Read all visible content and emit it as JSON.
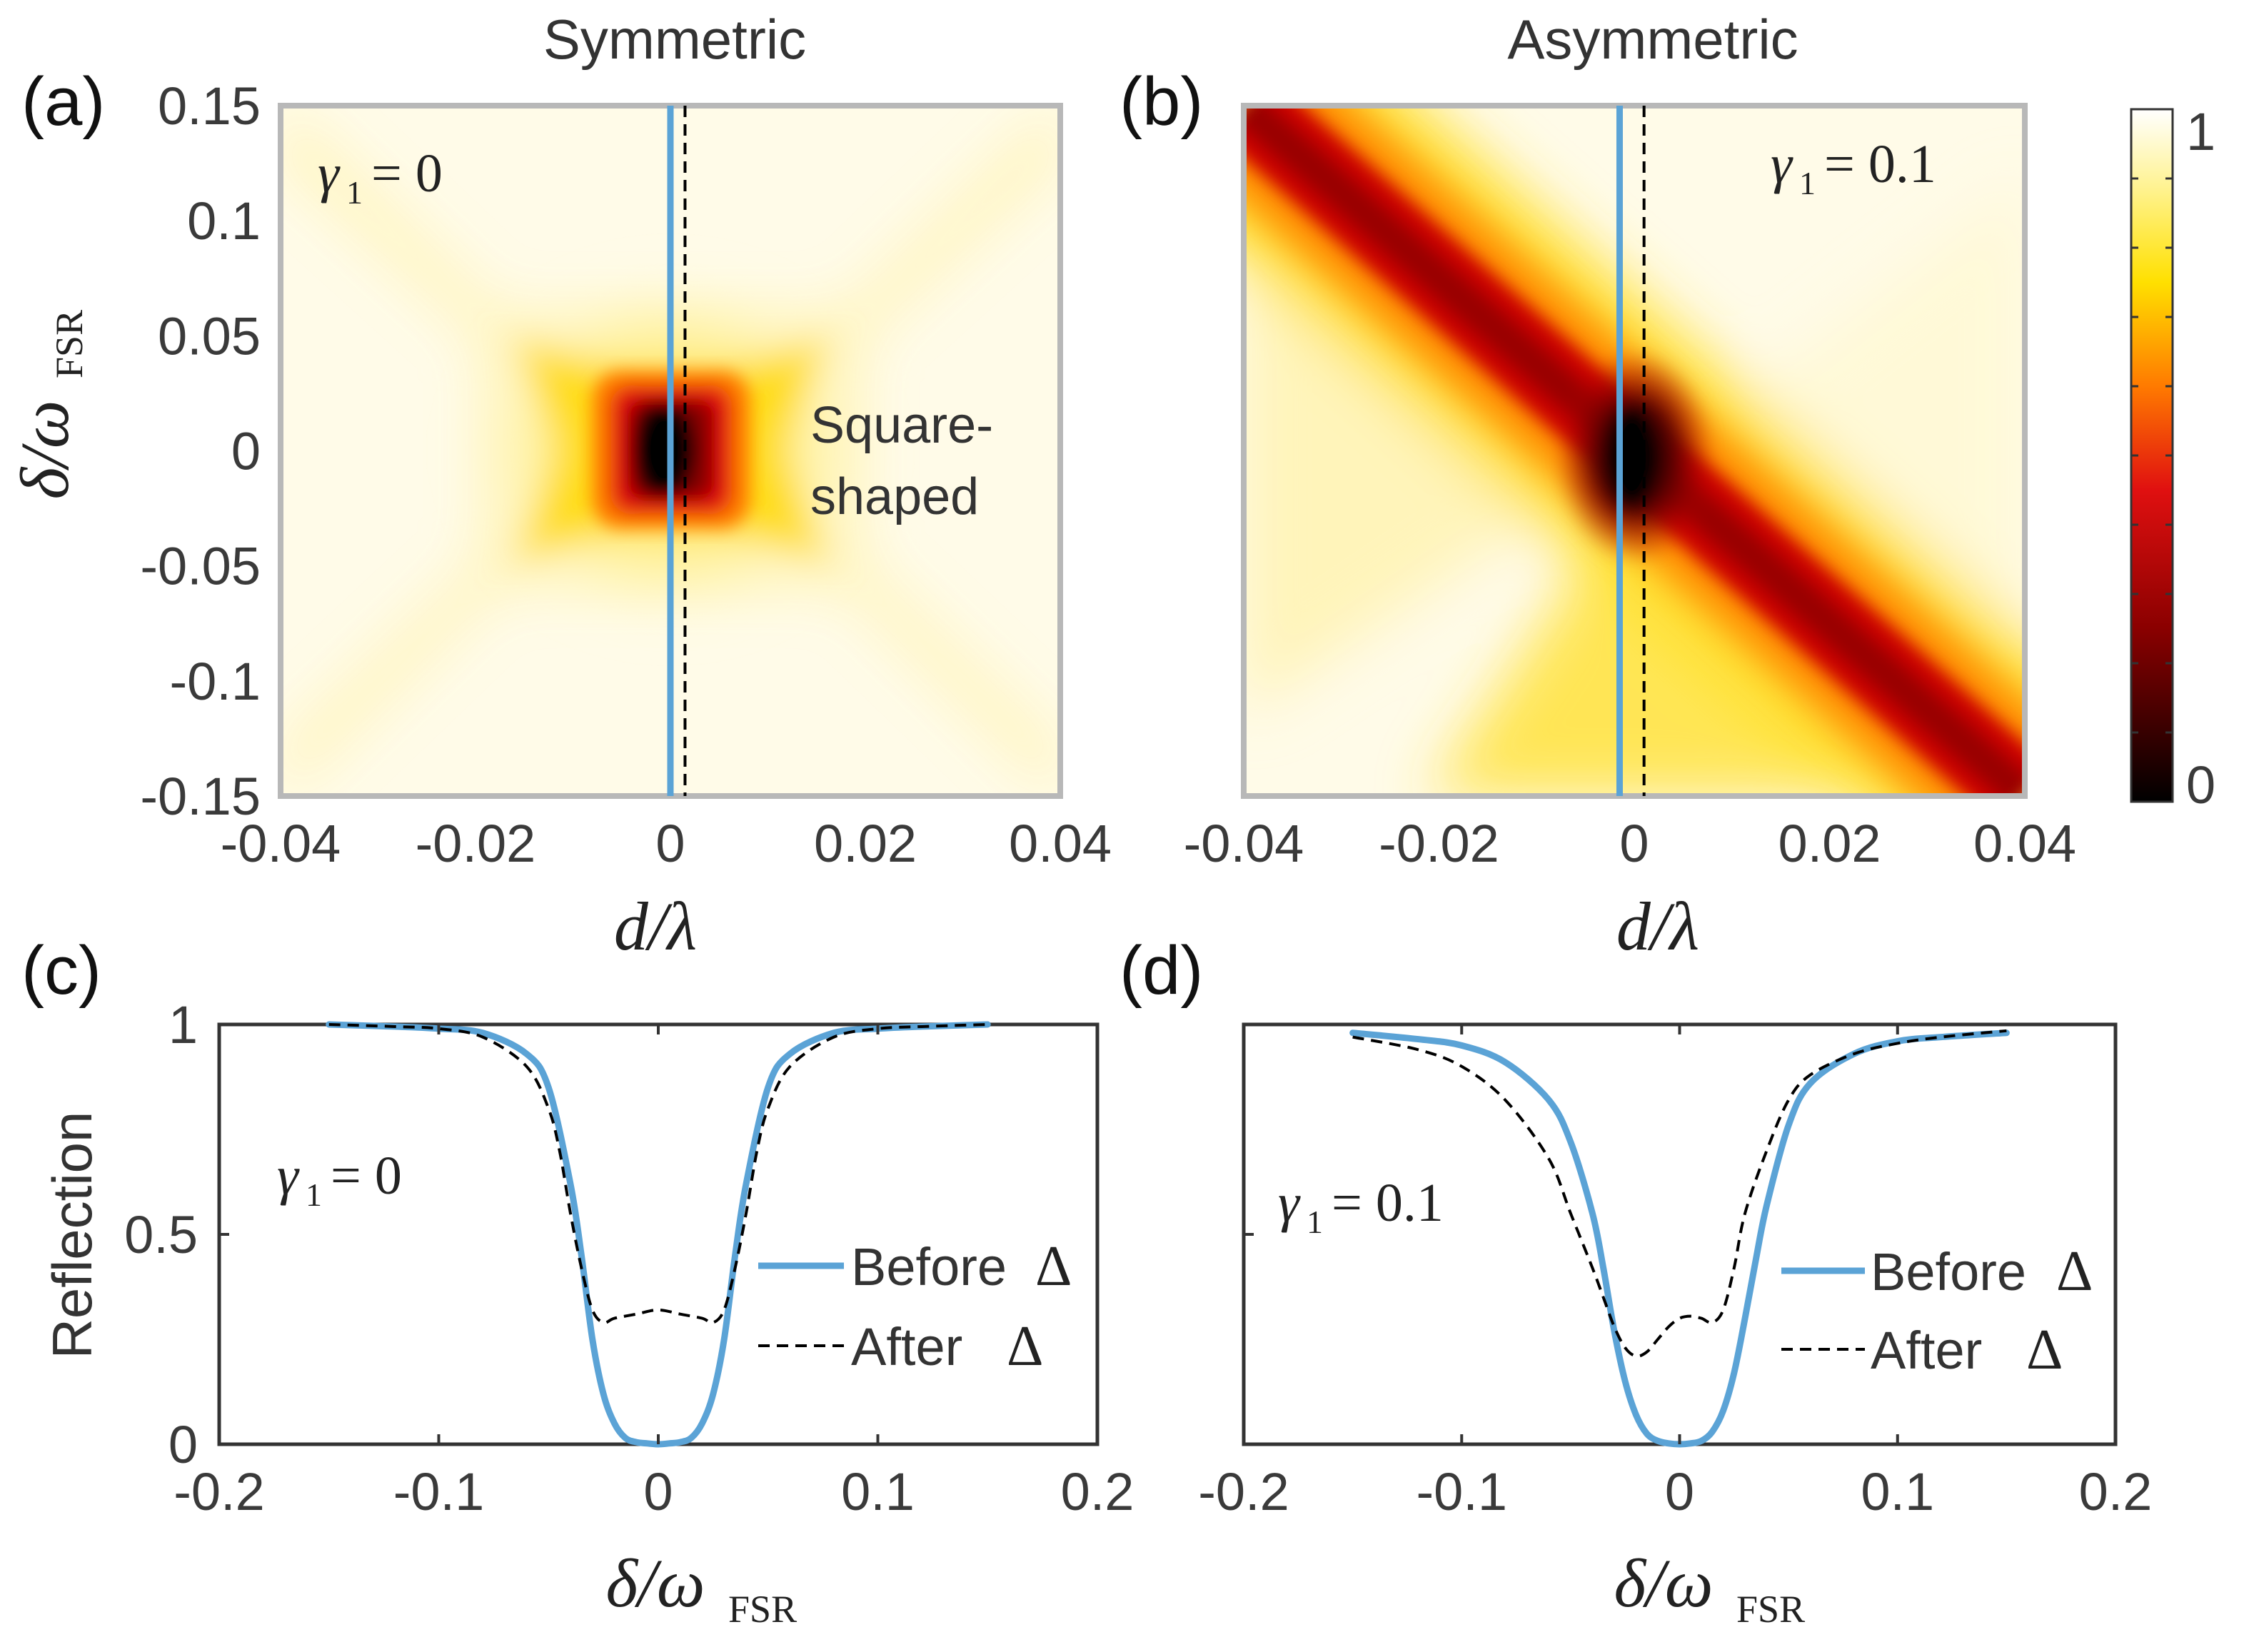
{
  "chart_data": [
    {
      "panel": "(a)",
      "type": "heatmap",
      "title": "Symmetric",
      "xlabel": "d/λ",
      "ylabel": "δ/ω_FSR",
      "ylabel_main": "δ/ω",
      "ylabel_sub": "FSR",
      "xlim": [
        -0.04,
        0.04
      ],
      "ylim": [
        -0.15,
        0.15
      ],
      "xticks": [
        "-0.04",
        "-0.02",
        "0",
        "0.02",
        "0.04"
      ],
      "yticks": [
        "0.15",
        "0.1",
        "0.05",
        "0",
        "-0.05",
        "-0.1",
        "-0.15"
      ],
      "gamma_label": "γ",
      "gamma_sub": "1",
      "gamma_value": "= 0",
      "gamma1": 0,
      "annotation_line1": "Square-",
      "annotation_line2": "shaped",
      "solid_line_x": 0.0,
      "dashed_line_x": 0.0015,
      "color": "#5ba3d6"
    },
    {
      "panel": "(b)",
      "type": "heatmap",
      "title": "Asymmetric",
      "xlabel": "d/λ",
      "xlim": [
        -0.04,
        0.04
      ],
      "ylim": [
        -0.15,
        0.15
      ],
      "xticks": [
        "-0.04",
        "-0.02",
        "0",
        "0.02",
        "0.04"
      ],
      "gamma_label": "γ",
      "gamma_sub": "1",
      "gamma_value": "= 0.1",
      "gamma1": 0.1,
      "solid_line_x": -0.0015,
      "dashed_line_x": 0.001,
      "color": "#5ba3d6",
      "colorbar": {
        "min": 0,
        "max": 1,
        "min_label": "0",
        "max_label": "1"
      }
    },
    {
      "panel": "(c)",
      "type": "line",
      "xlabel": "δ/ω_FSR",
      "xlabel_main": "δ/ω",
      "xlabel_sub": "FSR",
      "ylabel": "Reflection",
      "xlim": [
        -0.2,
        0.2
      ],
      "ylim": [
        0,
        1
      ],
      "xticks": [
        "-0.2",
        "-0.1",
        "0",
        "0.1",
        "0.2"
      ],
      "yticks": [
        "1",
        "0.5",
        "0"
      ],
      "gamma_label": "γ",
      "gamma_sub": "1",
      "gamma_value": "= 0",
      "series": [
        {
          "name": "Before Δ",
          "label": "Before",
          "x": [
            -0.15,
            -0.12,
            -0.1,
            -0.08,
            -0.06,
            -0.05,
            -0.04,
            -0.035,
            -0.03,
            -0.025,
            -0.02,
            -0.015,
            -0.01,
            -0.005,
            0,
            0.005,
            0.01,
            0.015,
            0.02,
            0.025,
            0.03,
            0.035,
            0.04,
            0.05,
            0.06,
            0.08,
            0.1,
            0.12,
            0.15
          ],
          "values": [
            1.0,
            0.995,
            0.99,
            0.98,
            0.93,
            0.85,
            0.62,
            0.45,
            0.25,
            0.12,
            0.05,
            0.015,
            0.005,
            0.002,
            0.0,
            0.002,
            0.005,
            0.015,
            0.05,
            0.12,
            0.25,
            0.45,
            0.62,
            0.85,
            0.93,
            0.98,
            0.99,
            0.995,
            1.0
          ]
        },
        {
          "name": "After Δ",
          "label": "After",
          "x": [
            -0.15,
            -0.12,
            -0.1,
            -0.08,
            -0.06,
            -0.05,
            -0.045,
            -0.04,
            -0.035,
            -0.03,
            -0.025,
            -0.02,
            -0.01,
            0,
            0.01,
            0.02,
            0.025,
            0.03,
            0.035,
            0.04,
            0.045,
            0.05,
            0.06,
            0.08,
            0.1,
            0.12,
            0.15
          ],
          "values": [
            1.0,
            0.995,
            0.99,
            0.97,
            0.9,
            0.8,
            0.7,
            0.55,
            0.42,
            0.32,
            0.29,
            0.3,
            0.31,
            0.32,
            0.31,
            0.3,
            0.29,
            0.32,
            0.42,
            0.55,
            0.7,
            0.8,
            0.9,
            0.97,
            0.99,
            0.995,
            1.0
          ]
        }
      ]
    },
    {
      "panel": "(d)",
      "type": "line",
      "xlabel": "δ/ω_FSR",
      "xlim": [
        -0.2,
        0.2
      ],
      "ylim": [
        0,
        1
      ],
      "xticks": [
        "-0.2",
        "-0.1",
        "0",
        "0.1",
        "0.2"
      ],
      "gamma_label": "γ",
      "gamma_sub": "1",
      "gamma_value": "= 0.1",
      "series": [
        {
          "name": "Before Δ",
          "label": "Before",
          "x": [
            -0.15,
            -0.12,
            -0.1,
            -0.08,
            -0.06,
            -0.05,
            -0.04,
            -0.035,
            -0.03,
            -0.025,
            -0.02,
            -0.015,
            -0.01,
            -0.005,
            0,
            0.005,
            0.01,
            0.015,
            0.02,
            0.025,
            0.03,
            0.035,
            0.04,
            0.05,
            0.06,
            0.08,
            0.1,
            0.12,
            0.15
          ],
          "values": [
            0.98,
            0.965,
            0.95,
            0.91,
            0.82,
            0.72,
            0.55,
            0.42,
            0.27,
            0.15,
            0.07,
            0.025,
            0.008,
            0.002,
            0.0,
            0.002,
            0.008,
            0.03,
            0.08,
            0.17,
            0.3,
            0.44,
            0.57,
            0.76,
            0.86,
            0.93,
            0.96,
            0.97,
            0.98
          ]
        },
        {
          "name": "After Δ",
          "label": "After",
          "x": [
            -0.15,
            -0.12,
            -0.1,
            -0.08,
            -0.06,
            -0.05,
            -0.04,
            -0.035,
            -0.03,
            -0.025,
            -0.02,
            -0.015,
            -0.01,
            -0.005,
            0,
            0.005,
            0.01,
            0.015,
            0.02,
            0.025,
            0.03,
            0.04,
            0.05,
            0.06,
            0.08,
            0.1,
            0.12,
            0.15
          ],
          "values": [
            0.97,
            0.94,
            0.9,
            0.82,
            0.68,
            0.55,
            0.42,
            0.35,
            0.28,
            0.23,
            0.21,
            0.22,
            0.25,
            0.28,
            0.3,
            0.305,
            0.3,
            0.29,
            0.32,
            0.42,
            0.55,
            0.7,
            0.82,
            0.88,
            0.93,
            0.955,
            0.97,
            0.985
          ]
        }
      ]
    }
  ],
  "legend_delta": "Δ"
}
